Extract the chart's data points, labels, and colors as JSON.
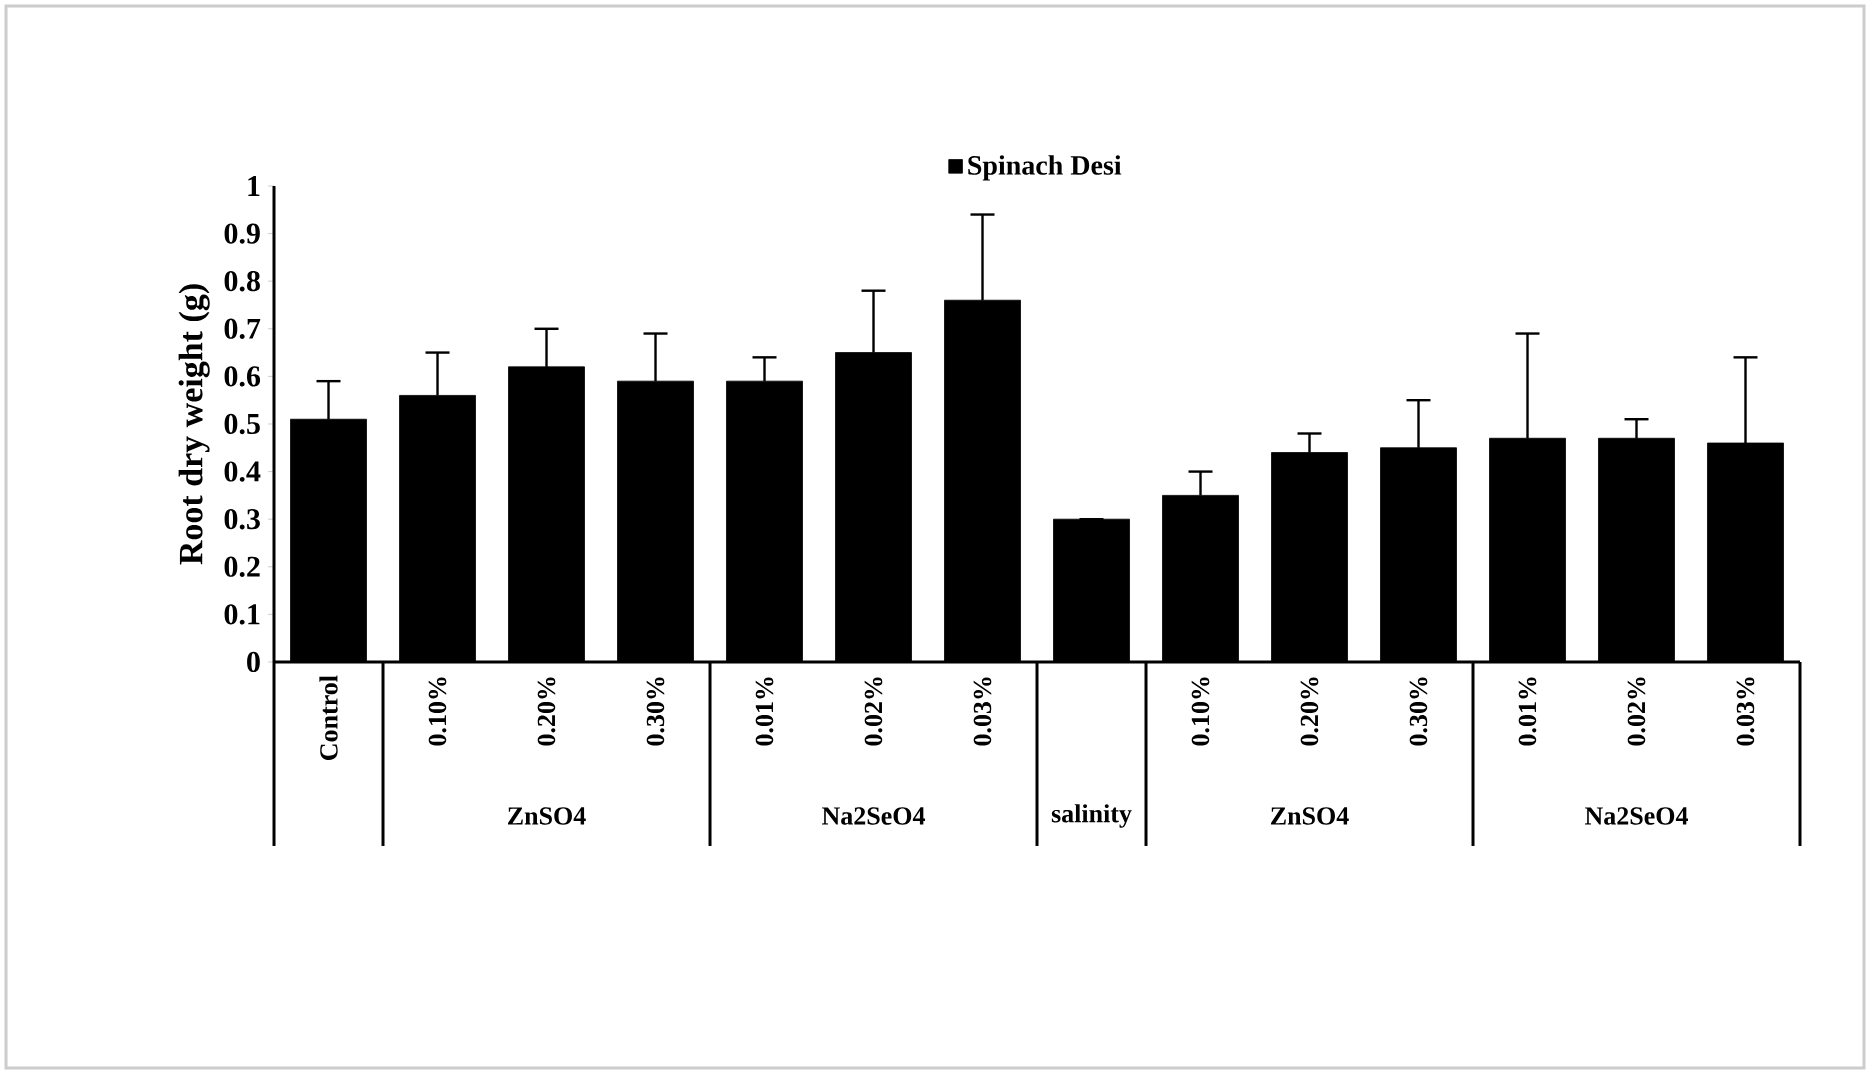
{
  "chart_data": {
    "type": "bar",
    "ylabel": "Root dry weight (g)",
    "categories": [
      "Control",
      "0.10%",
      "0.20%",
      "0.30%",
      "0.01%",
      "0.02%",
      "0.03%",
      null,
      "0.10%",
      "0.20%",
      "0.30%",
      "0.01%",
      "0.02%",
      "0.03%"
    ],
    "series": [
      {
        "name": "Spinach Desi",
        "color": "#000000",
        "values": [
          0.51,
          0.56,
          0.62,
          0.59,
          0.59,
          0.65,
          0.76,
          0.3,
          0.35,
          0.44,
          0.45,
          0.47,
          0.47,
          0.46
        ],
        "errors": [
          [
            0.51,
            0.59
          ],
          [
            0.56,
            0.65
          ],
          [
            0.62,
            0.7
          ],
          [
            0.59,
            0.69
          ],
          [
            0.59,
            0.64
          ],
          [
            0.65,
            0.78
          ],
          [
            0.76,
            0.94
          ],
          [
            0.3,
            0.3
          ],
          [
            0.35,
            0.4
          ],
          [
            0.44,
            0.48
          ],
          [
            0.45,
            0.55
          ],
          [
            0.47,
            0.69
          ],
          [
            0.47,
            0.51
          ],
          [
            0.46,
            0.64
          ]
        ]
      }
    ],
    "annotations": [
      "ZnSO4",
      "Na2SeO4",
      "salinity",
      "ZnSO4",
      "Na2SeO4"
    ],
    "ylim": [
      0,
      1
    ],
    "yticks": [
      0,
      0.1,
      0.2,
      0.3,
      0.4,
      0.5,
      0.6,
      0.7,
      0.8,
      0.9,
      1
    ],
    "legend": "top",
    "grid": false
  }
}
